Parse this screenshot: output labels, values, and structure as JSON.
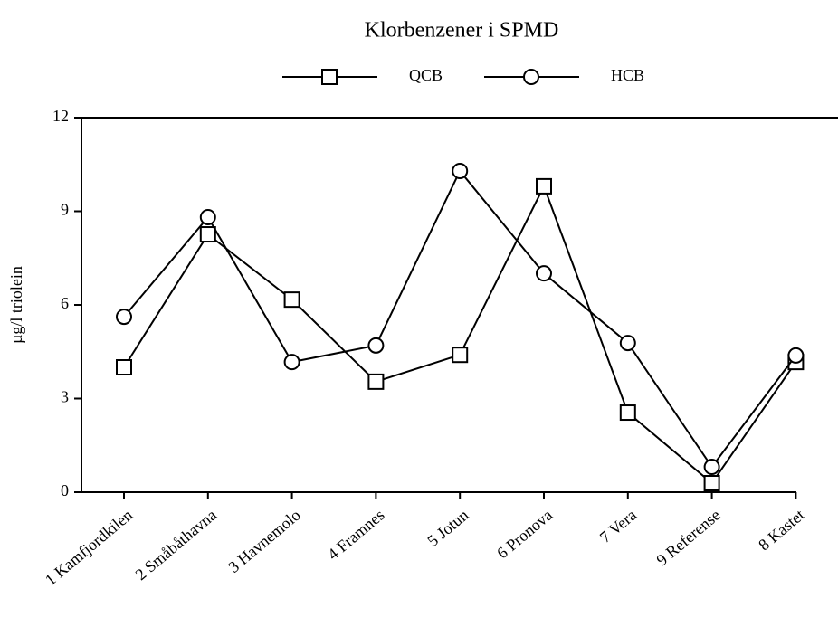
{
  "chart_data": {
    "type": "line",
    "title": "Klorbenzener i SPMD",
    "y_label": "µg/l triolein",
    "categories": [
      "1 Kamfjordkilen",
      "2 Småbåthavna",
      "3 Havnemolo",
      "4 Framnes",
      "5 Jotun",
      "6 Pronova",
      "7 Vera",
      "9 Referense",
      "8 Kastet"
    ],
    "series": [
      {
        "name": "QCB",
        "color": "#000000",
        "marker": "square",
        "values": [
          4.0,
          8.26,
          6.17,
          3.54,
          4.4,
          9.8,
          2.55,
          0.29,
          4.17
        ]
      },
      {
        "name": "HCB",
        "color": "#000000",
        "marker": "circle",
        "values": [
          5.62,
          8.81,
          4.17,
          4.7,
          10.29,
          7.01,
          4.78,
          0.81,
          4.38
        ]
      }
    ],
    "ylim": [
      0,
      12
    ],
    "yticks": [
      0,
      3,
      6,
      9,
      12
    ],
    "legend": "top"
  }
}
